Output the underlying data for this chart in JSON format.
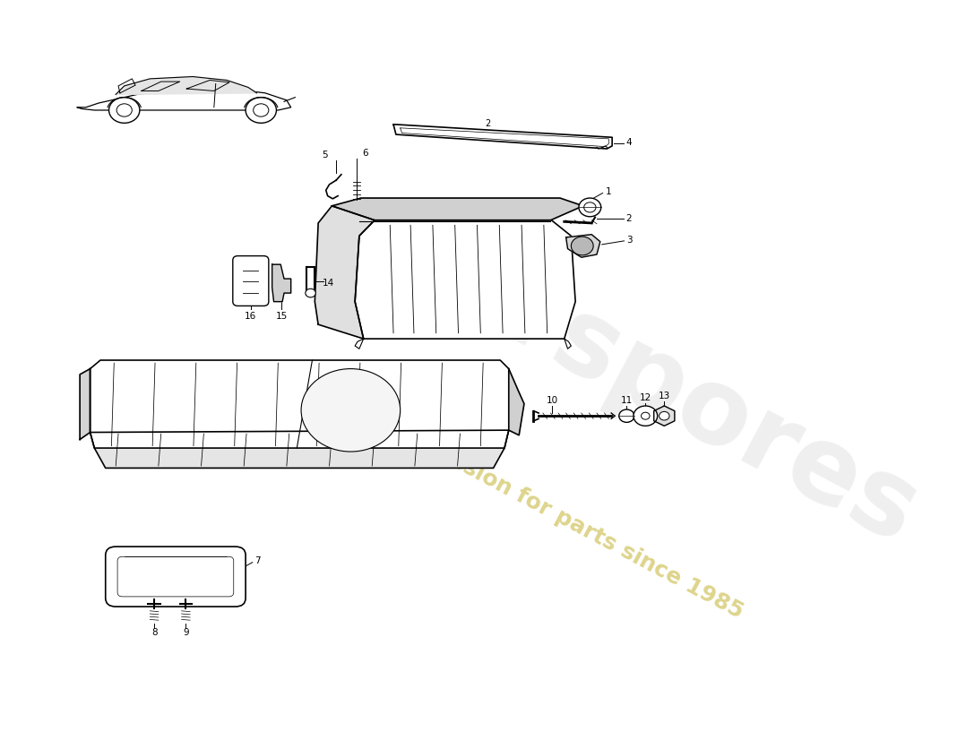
{
  "background_color": "#ffffff",
  "line_color": "#000000",
  "watermark_text1": "eurspores",
  "watermark_text2": "a passion for parts since 1985",
  "watermark_color1": "#cccccc",
  "watermark_color2": "#c8b840"
}
